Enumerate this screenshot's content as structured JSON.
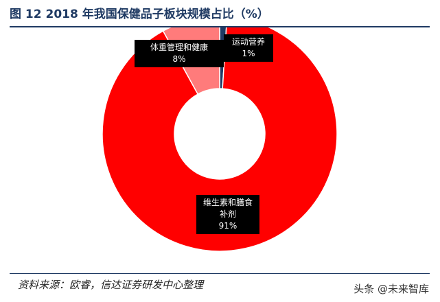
{
  "title": "图  12 2018 年我国保健品子板块规模占比（%）",
  "source": "资料来源：欧睿，信达证券研发中心整理",
  "watermark": "头条 @未来智库",
  "chart_data": {
    "type": "pie",
    "title": "图  12 2018 年我国保健品子板块规模占比（%）",
    "donut": true,
    "categories": [
      "运动营养",
      "维生素和膳食补剂",
      "体重管理和健康"
    ],
    "values": [
      1,
      91,
      8
    ],
    "value_labels": [
      "1%",
      "91%",
      "8%"
    ],
    "colors": [
      "#1f3a63",
      "#ff0000",
      "#ff7b7b"
    ],
    "labels": [
      {
        "name": "体重管理和健康",
        "value": "8%"
      },
      {
        "name": "运动营养",
        "value": "1%"
      },
      {
        "name": "维生素和膳食补剂",
        "value": "91%"
      }
    ]
  }
}
